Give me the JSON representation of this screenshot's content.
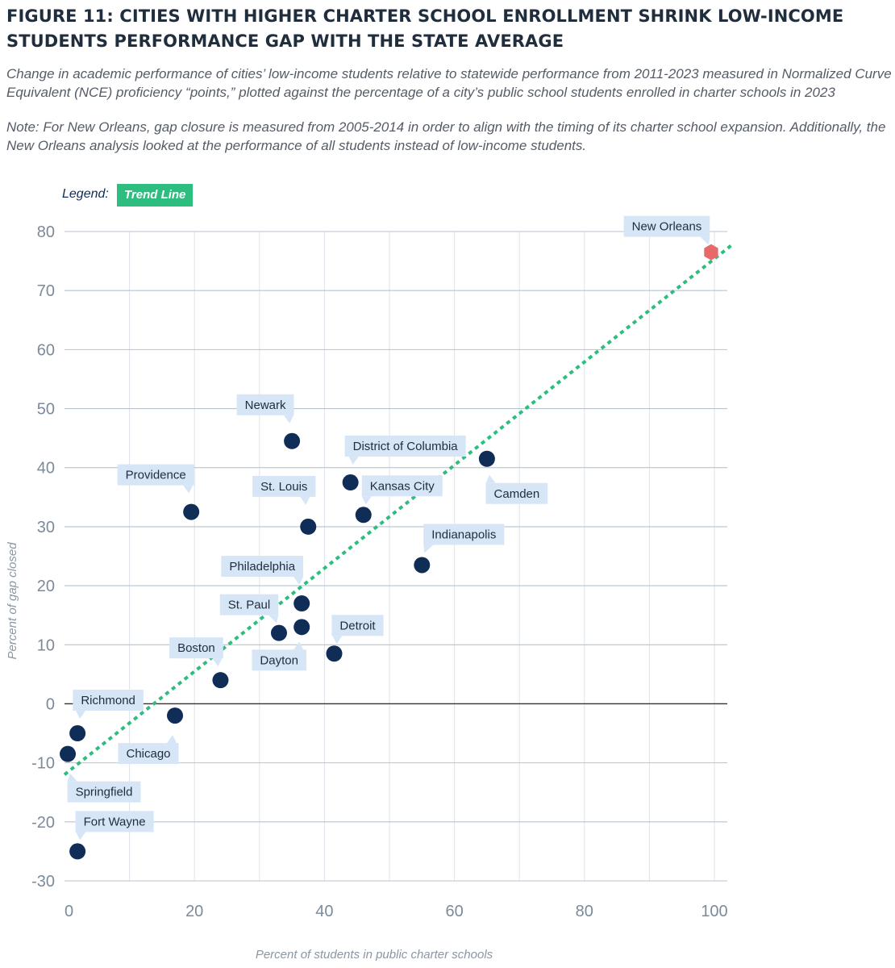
{
  "figure": {
    "title": "FIGURE 11: CITIES WITH HIGHER CHARTER SCHOOL ENROLLMENT SHRINK LOW-INCOME STUDENTS PERFORMANCE GAP WITH THE STATE AVERAGE",
    "subtitle": "Change in academic performance of cities’ low-income students relative to statewide performance from 2011-2023 measured in Normalized Curve Equivalent (NCE) proficiency “points,” plotted against the percentage of a city’s public school students enrolled in charter schools in 2023",
    "note": "Note: For New Orleans, gap closure is measured from 2005-2014 in order to align with the timing of its charter school expansion. Additionally, the New Orleans analysis looked at the performance of all students instead of low-income students."
  },
  "legend": {
    "label": "Legend:",
    "trend_line": "Trend Line"
  },
  "colors": {
    "point": "#0f2d57",
    "highlight_point": "#e8696a",
    "trend": "#2dbd7e",
    "label_bg": "#d6e6f7",
    "grid": "#b8c3cf",
    "zero_line": "#333333"
  },
  "chart_data": {
    "type": "scatter",
    "xlabel": "Percent of students in public charter schools",
    "ylabel": "Percent of gap closed",
    "xlim": [
      0,
      100
    ],
    "ylim": [
      -30,
      80
    ],
    "x_ticks": [
      0,
      20,
      40,
      60,
      80,
      100
    ],
    "y_ticks": [
      80,
      70,
      60,
      50,
      40,
      30,
      20,
      10,
      0,
      -10,
      -20,
      -30
    ],
    "grid": true,
    "trend_line": {
      "x": [
        0,
        103
      ],
      "y": [
        -12,
        78
      ]
    },
    "points": [
      {
        "city": "New Orleans",
        "x": 99.5,
        "y": 76.5,
        "highlight": true
      },
      {
        "city": "Newark",
        "x": 35,
        "y": 44.5
      },
      {
        "city": "District of Columbia",
        "x": 44,
        "y": 37.5
      },
      {
        "city": "Camden",
        "x": 65,
        "y": 41.5
      },
      {
        "city": "Providence",
        "x": 19.5,
        "y": 32.5
      },
      {
        "city": "St. Louis",
        "x": 37.5,
        "y": 30
      },
      {
        "city": "Kansas City",
        "x": 46,
        "y": 32
      },
      {
        "city": "Indianapolis",
        "x": 55,
        "y": 23.5
      },
      {
        "city": "Philadelphia",
        "x": 36.5,
        "y": 17
      },
      {
        "city": "St. Paul",
        "x": 33,
        "y": 12
      },
      {
        "city": "Dayton",
        "x": 36.5,
        "y": 13
      },
      {
        "city": "Detroit",
        "x": 41.5,
        "y": 8.5
      },
      {
        "city": "Boston",
        "x": 24,
        "y": 4
      },
      {
        "city": "Richmond",
        "x": 2,
        "y": -5
      },
      {
        "city": "Chicago",
        "x": 17,
        "y": -2
      },
      {
        "city": "Springfield",
        "x": 0.5,
        "y": -8.5
      },
      {
        "city": "Fort Wayne",
        "x": 2,
        "y": -25
      }
    ]
  }
}
